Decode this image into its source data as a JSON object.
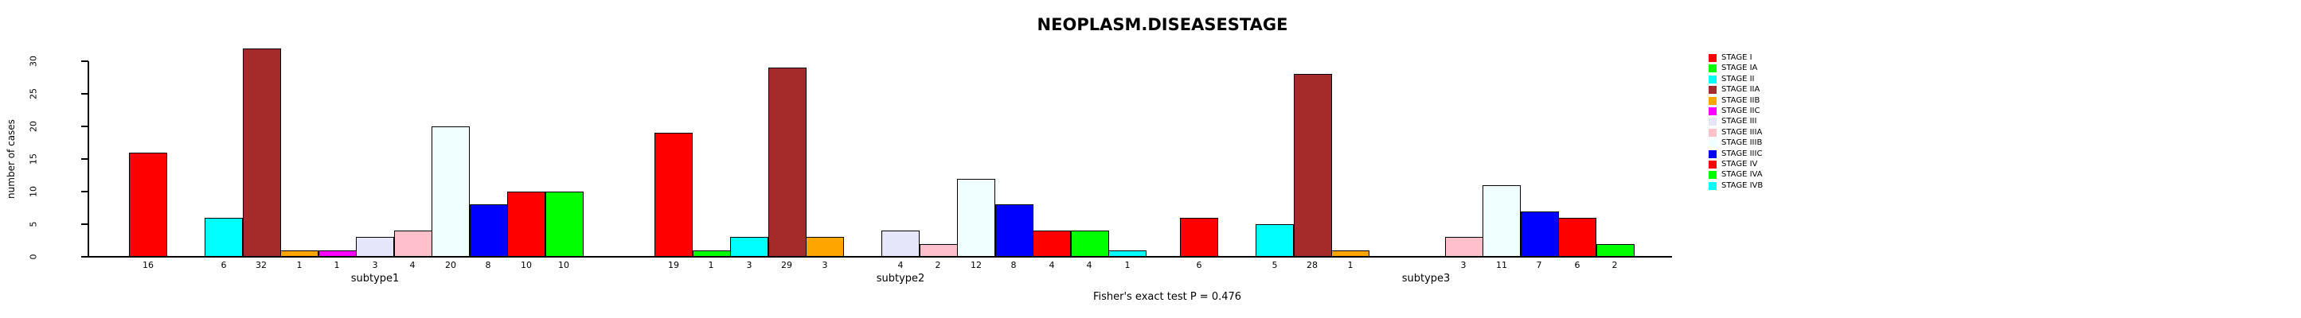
{
  "chart_data": {
    "type": "bar",
    "title": "NEOPLASM.DISEASESTAGE",
    "ylabel": "number of cases",
    "footer": "Fisher's exact test P = 0.476",
    "ylim": [
      0,
      30
    ],
    "yticks": [
      0,
      5,
      10,
      15,
      20,
      25,
      30
    ],
    "grid": false,
    "legend_position": "right",
    "categories": [
      "subtype1",
      "subtype2",
      "subtype3"
    ],
    "series": [
      {
        "name": "STAGE I",
        "color": "#FF0000",
        "values": [
          16,
          19,
          6
        ]
      },
      {
        "name": "STAGE IA",
        "color": "#00FF00",
        "values": [
          0,
          1,
          0
        ]
      },
      {
        "name": "STAGE II",
        "color": "#00FFFF",
        "values": [
          6,
          3,
          5
        ]
      },
      {
        "name": "STAGE IIA",
        "color": "#A52A2A",
        "values": [
          32,
          29,
          28
        ]
      },
      {
        "name": "STAGE IIB",
        "color": "#FFA500",
        "values": [
          1,
          3,
          1
        ]
      },
      {
        "name": "STAGE IIC",
        "color": "#FF00FF",
        "values": [
          1,
          0,
          0
        ]
      },
      {
        "name": "STAGE III",
        "color": "#E6E6FA",
        "values": [
          3,
          4,
          0
        ]
      },
      {
        "name": "STAGE IIIA",
        "color": "#FFC0CB",
        "values": [
          4,
          2,
          3
        ]
      },
      {
        "name": "STAGE IIIB",
        "color": "#F0FFFF",
        "values": [
          20,
          12,
          11
        ]
      },
      {
        "name": "STAGE IIIC",
        "color": "#0000FF",
        "values": [
          8,
          8,
          7
        ]
      },
      {
        "name": "STAGE IV",
        "color": "#FF0000",
        "values": [
          10,
          4,
          6
        ]
      },
      {
        "name": "STAGE IVA",
        "color": "#00FF00",
        "values": [
          10,
          4,
          2
        ]
      },
      {
        "name": "STAGE IVB",
        "color": "#00FFFF",
        "values": [
          0,
          1,
          0
        ]
      }
    ]
  },
  "colors": {
    "background": "#FFFFFF",
    "axis": "#000000",
    "bar_border": "#000000",
    "text": "#000000"
  }
}
